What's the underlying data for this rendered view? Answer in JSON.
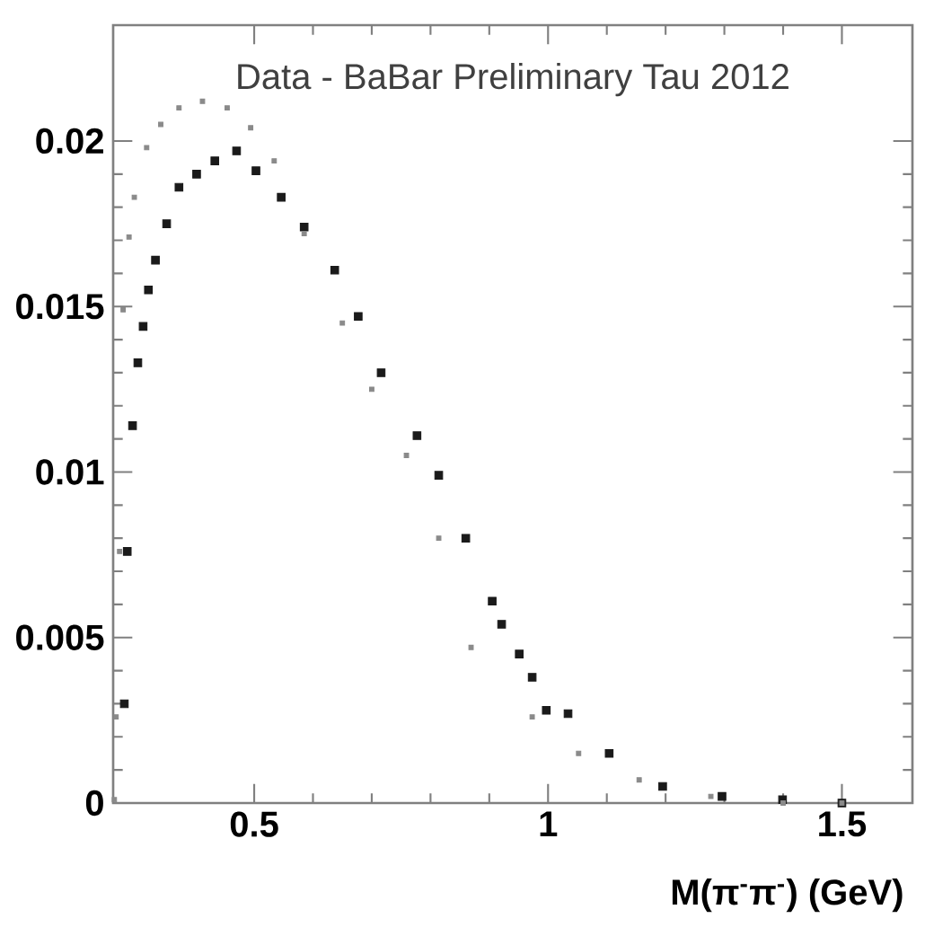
{
  "chart_data": {
    "type": "scatter",
    "xlabel": "M(π$^{-}$π$^{-}$) (GeV)",
    "annotations": [
      "Data - BaBar Preliminary Tau 2012"
    ],
    "xlim": [
      0.26,
      1.62
    ],
    "ylim": [
      0,
      0.0235
    ],
    "xticks": [
      0.5,
      1,
      1.5
    ],
    "yticks": [
      0,
      0.005,
      0.01,
      0.015,
      0.02
    ],
    "marker": "square",
    "series": [
      {
        "color": "#1a1a1a",
        "x": [
          0.279,
          0.284,
          0.293,
          0.302,
          0.311,
          0.32,
          0.332,
          0.351,
          0.372,
          0.402,
          0.433,
          0.47,
          0.503,
          0.546,
          0.585,
          0.637,
          0.677,
          0.716,
          0.777,
          0.814,
          0.86,
          0.905,
          0.921,
          0.951,
          0.973,
          0.997,
          1.034,
          1.104,
          1.195,
          1.296,
          1.399,
          1.5
        ],
        "values": [
          0.003,
          0.0076,
          0.0114,
          0.0133,
          0.0144,
          0.0155,
          0.0164,
          0.0175,
          0.0186,
          0.019,
          0.0194,
          0.0197,
          0.0191,
          0.0183,
          0.0174,
          0.0161,
          0.0147,
          0.013,
          0.0111,
          0.0099,
          0.008,
          0.0061,
          0.0054,
          0.0045,
          0.0038,
          0.0028,
          0.0027,
          0.0015,
          0.0005,
          0.0002,
          0.0001,
          0.0
        ]
      },
      {
        "color": "#8a8a8a",
        "x": [
          0.262,
          0.265,
          0.271,
          0.277,
          0.287,
          0.296,
          0.317,
          0.341,
          0.372,
          0.412,
          0.454,
          0.494,
          0.534,
          0.585,
          0.65,
          0.7,
          0.759,
          0.814,
          0.869,
          0.973,
          1.052,
          1.155,
          1.277,
          1.4,
          1.5
        ],
        "values": [
          0.0001,
          0.0026,
          0.0076,
          0.0149,
          0.0171,
          0.0183,
          0.0198,
          0.0205,
          0.021,
          0.0212,
          0.021,
          0.0204,
          0.0194,
          0.0172,
          0.0145,
          0.0125,
          0.0105,
          0.008,
          0.0047,
          0.0026,
          0.0015,
          0.0007,
          0.0002,
          0.0,
          0.0
        ]
      }
    ]
  }
}
